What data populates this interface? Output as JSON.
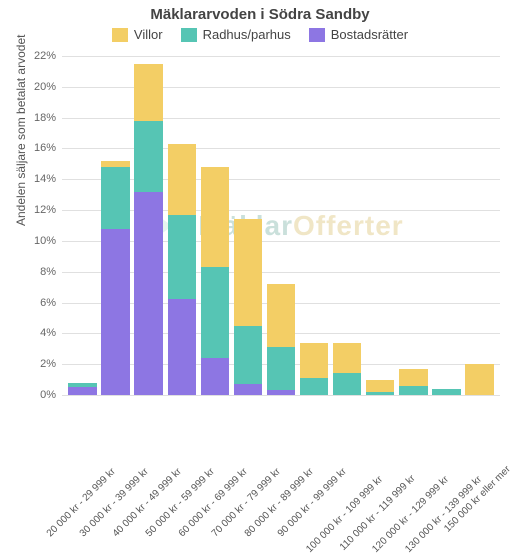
{
  "title": "Mäklararvoden i Södra Sandby",
  "legend": {
    "villor": "Villor",
    "radhus": "Radhus/parhus",
    "bostad": "Bostadsrätter"
  },
  "colors": {
    "villor": "#f3ce65",
    "radhus": "#56c5b4",
    "bostad": "#8d76e3",
    "grid": "#e0e0e0",
    "bg": "#ffffff"
  },
  "y_axis": {
    "label": "Andelen säljare som betalat arvodet",
    "min": 0,
    "max": 22,
    "step": 2,
    "suffix": "%"
  },
  "watermark": {
    "part1": "Mäklar",
    "part2": "Offerter",
    "color1": "#6aa99a",
    "color2": "#d6b85f"
  },
  "categories": [
    "20 000 kr - 29 999 kr",
    "30 000 kr - 39 999 kr",
    "40 000 kr - 49 999 kr",
    "50 000 kr - 59 999 kr",
    "60 000 kr - 69 999 kr",
    "70 000 kr - 79 999 kr",
    "80 000 kr - 89 999 kr",
    "90 000 kr - 99 999 kr",
    "100 000 kr - 109 999 kr",
    "110 000 kr - 119 999 kr",
    "120 000 kr - 129 999 kr",
    "130 000 kr - 139 999 kr",
    "150 000 kr eller mer"
  ],
  "series": {
    "bostad": [
      0.5,
      10.8,
      13.2,
      6.2,
      2.4,
      0.7,
      0.3,
      0.0,
      0.0,
      0.0,
      0.0,
      0.0,
      0.0
    ],
    "radhus": [
      0.3,
      4.0,
      4.6,
      5.5,
      5.9,
      3.8,
      2.8,
      1.1,
      1.4,
      0.2,
      0.6,
      0.4,
      0.0
    ],
    "villor": [
      0.0,
      0.4,
      3.7,
      4.6,
      6.5,
      6.9,
      4.1,
      2.3,
      2.0,
      0.8,
      1.1,
      0.0,
      2.0
    ]
  }
}
